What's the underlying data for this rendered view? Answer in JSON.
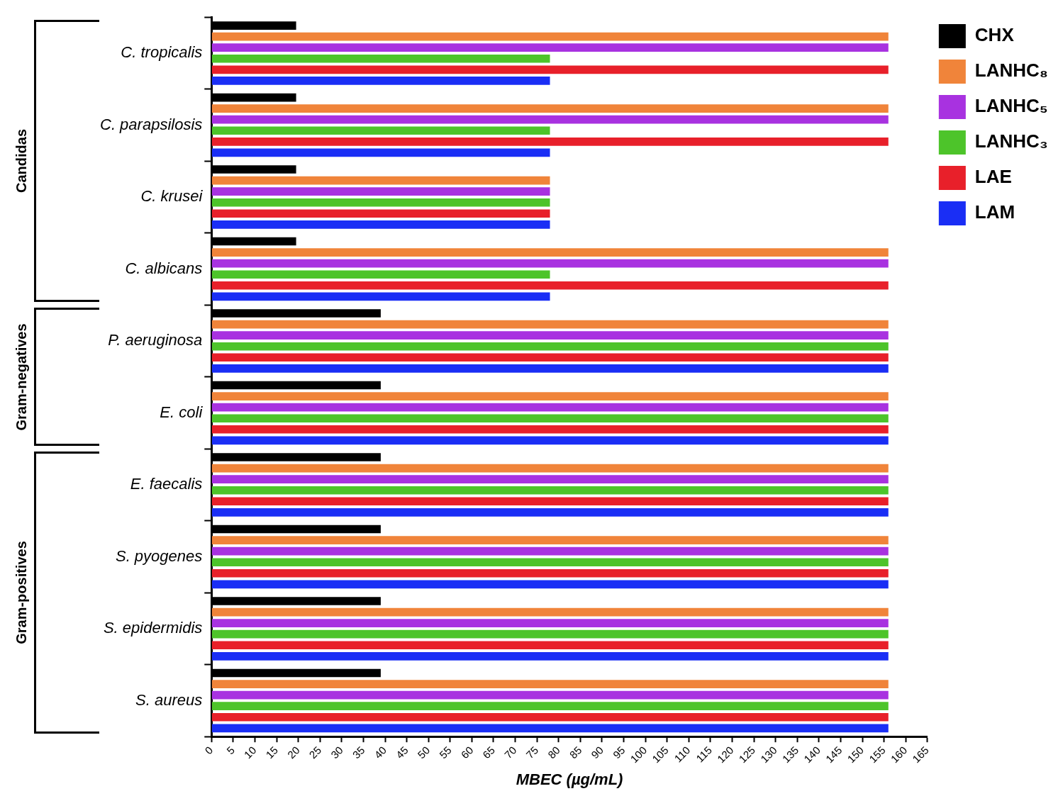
{
  "chart_data": {
    "type": "bar",
    "orientation": "horizontal",
    "xlabel": "MBEC (µg/mL)",
    "categories": [
      "C. tropicalis",
      "C. parapsilosis",
      "C. krusei",
      "C. albicans",
      "P. aeruginosa",
      "E. coli",
      "E. faecalis",
      "S. pyogenes",
      "S. epidermidis",
      "S. aureus"
    ],
    "series": [
      {
        "name": "CHX",
        "color": "#000000",
        "values": [
          19.5,
          19.5,
          19.5,
          19.5,
          39,
          39,
          39,
          39,
          39,
          39
        ]
      },
      {
        "name": "LANHC₈",
        "color": "#f0843a",
        "values": [
          156,
          156,
          78,
          156,
          156,
          156,
          156,
          156,
          156,
          156
        ]
      },
      {
        "name": "LANHC₅",
        "color": "#a832e0",
        "values": [
          156,
          156,
          78,
          156,
          156,
          156,
          156,
          156,
          156,
          156
        ]
      },
      {
        "name": "LANHC₃",
        "color": "#4dc42a",
        "values": [
          78,
          78,
          78,
          78,
          156,
          156,
          156,
          156,
          156,
          156
        ]
      },
      {
        "name": "LAE",
        "color": "#e8202a",
        "values": [
          156,
          156,
          78,
          156,
          156,
          156,
          156,
          156,
          156,
          156
        ]
      },
      {
        "name": "LAM",
        "color": "#1a2ef5",
        "values": [
          78,
          78,
          78,
          78,
          156,
          156,
          156,
          156,
          156,
          156
        ]
      }
    ],
    "annotations": [
      "Candidas",
      "Gram-negatives",
      "Gram-positives"
    ],
    "xlim": [
      0,
      165
    ],
    "xticks": [
      0,
      5,
      10,
      15,
      20,
      25,
      30,
      35,
      40,
      45,
      50,
      55,
      60,
      65,
      70,
      75,
      80,
      85,
      90,
      95,
      100,
      105,
      110,
      115,
      120,
      125,
      130,
      135,
      140,
      145,
      150,
      155,
      160,
      165
    ],
    "grid": false,
    "legend": "top right"
  }
}
